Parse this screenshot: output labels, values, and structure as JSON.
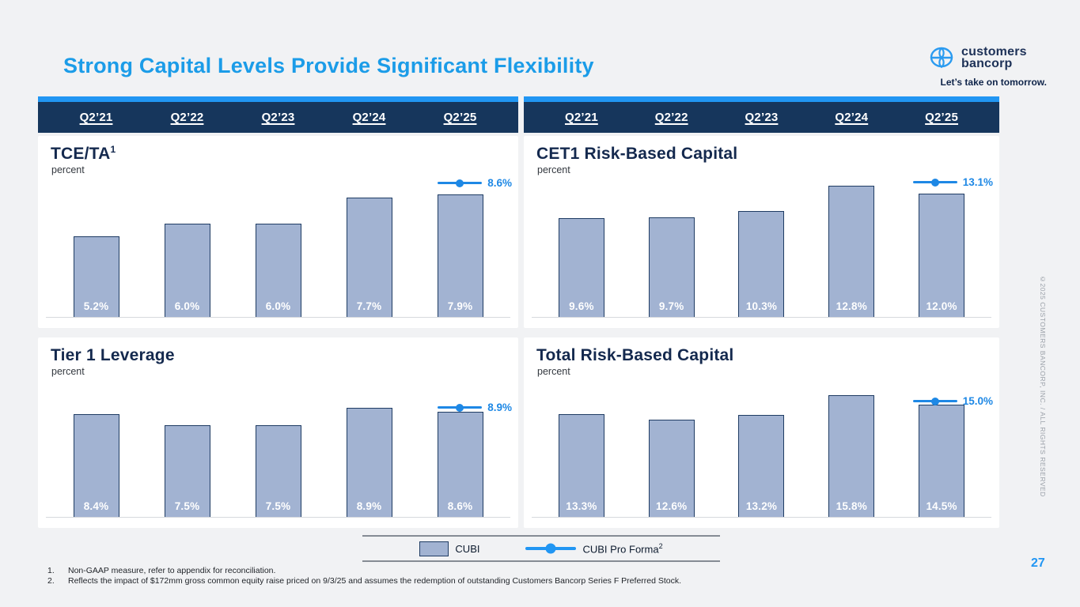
{
  "slide": {
    "title": "Strong Capital Levels Provide Significant Flexibility",
    "page_number": "27",
    "copyright": "©2025 CUSTOMERS BANCORP, INC. / ALL RIGHTS RESERVED"
  },
  "logo": {
    "icon": "customers-bancorp-mark",
    "name_line1": "customers",
    "name_line2": "bancorp",
    "tagline": "Let’s take on tomorrow."
  },
  "header": {
    "columns": [
      "Q2’21",
      "Q2’22",
      "Q2’23",
      "Q2’24",
      "Q2’25"
    ]
  },
  "chart_data": [
    {
      "type": "bar",
      "title": "TCE/TA",
      "title_superscript": "1",
      "ylabel": "percent",
      "categories": [
        "Q2’21",
        "Q2’22",
        "Q2’23",
        "Q2’24",
        "Q2’25"
      ],
      "values": [
        5.2,
        6.0,
        6.0,
        7.7,
        7.9
      ],
      "labels": [
        "5.2%",
        "6.0%",
        "6.0%",
        "7.7%",
        "7.9%"
      ],
      "pro_forma": {
        "value": 8.6,
        "label": "8.6%"
      },
      "ylim": [
        0,
        8.8
      ],
      "grid": false
    },
    {
      "type": "bar",
      "title": "CET1 Risk-Based Capital",
      "title_superscript": "",
      "ylabel": "percent",
      "categories": [
        "Q2’21",
        "Q2’22",
        "Q2’23",
        "Q2’24",
        "Q2’25"
      ],
      "values": [
        9.6,
        9.7,
        10.3,
        12.8,
        12.0
      ],
      "labels": [
        "9.6%",
        "9.7%",
        "10.3%",
        "12.8%",
        "12.0%"
      ],
      "pro_forma": {
        "value": 13.1,
        "label": "13.1%"
      },
      "ylim": [
        0,
        13.3
      ],
      "grid": false
    },
    {
      "type": "bar",
      "title": "Tier 1 Leverage",
      "title_superscript": "",
      "ylabel": "percent",
      "categories": [
        "Q2’21",
        "Q2’22",
        "Q2’23",
        "Q2’24",
        "Q2’25"
      ],
      "values": [
        8.4,
        7.5,
        7.5,
        8.9,
        8.6
      ],
      "labels": [
        "8.4%",
        "7.5%",
        "7.5%",
        "8.9%",
        "8.6%"
      ],
      "pro_forma": {
        "value": 8.9,
        "label": "8.9%"
      },
      "ylim": [
        0,
        10.5
      ],
      "grid": false
    },
    {
      "type": "bar",
      "title": "Total Risk-Based Capital",
      "title_superscript": "",
      "ylabel": "percent",
      "categories": [
        "Q2’21",
        "Q2’22",
        "Q2’23",
        "Q2’24",
        "Q2’25"
      ],
      "values": [
        13.3,
        12.6,
        13.2,
        15.8,
        14.5
      ],
      "labels": [
        "13.3%",
        "12.6%",
        "13.2%",
        "15.8%",
        "14.5%"
      ],
      "pro_forma": {
        "value": 15.0,
        "label": "15.0%"
      },
      "ylim": [
        0,
        16.7
      ],
      "grid": false
    }
  ],
  "legend": {
    "position": "bottom-center",
    "cubi_label": "CUBI",
    "cubi_marker": "bar-swatch",
    "pro_forma_label": "CUBI Pro Forma",
    "pro_forma_superscript": "2",
    "pro_forma_marker": "line-with-dot"
  },
  "footnotes": [
    {
      "num": "1.",
      "text": "Non-GAAP measure, refer to appendix for reconciliation."
    },
    {
      "num": "2.",
      "text": "Reflects the impact of $172mm gross common equity raise priced on 9/3/25 and assumes the redemption of outstanding Customers Bancorp Series F Preferred Stock."
    }
  ],
  "colors": {
    "accent": "#2196f3",
    "title-blue": "#1b9ce8",
    "navy": "#16365c",
    "bar-fill": "#a2b3d2",
    "bar-border": "#1f3c63",
    "proforma-blue": "#1e88e5",
    "page-bg": "#f1f2f4"
  }
}
